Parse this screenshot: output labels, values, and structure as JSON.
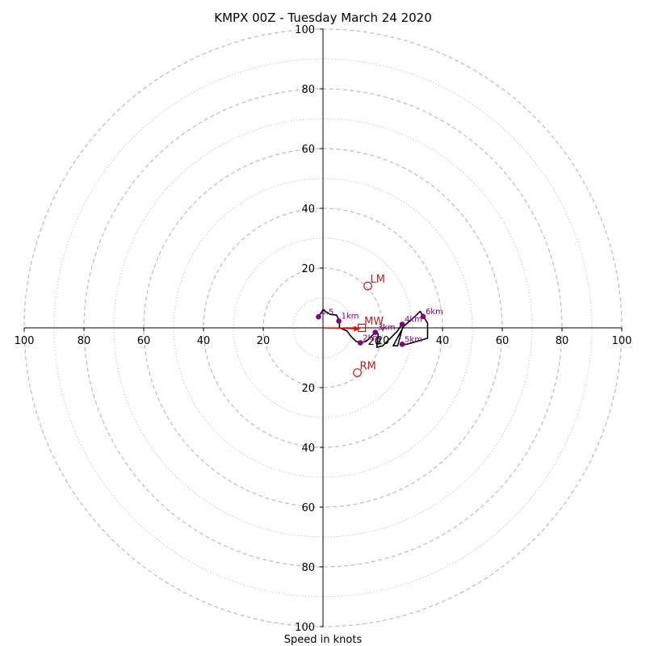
{
  "chart_data": {
    "type": "hodograph",
    "title": "KMPX 00Z - Tuesday March 24 2020",
    "xlabel": "Speed in knots",
    "range": [
      -100,
      100
    ],
    "ring_major": [
      20,
      40,
      60,
      80,
      100
    ],
    "ring_minor": [
      10,
      30,
      50,
      70,
      90
    ],
    "x_ticks": [
      {
        "value": -100,
        "label": "100"
      },
      {
        "value": -80,
        "label": "80"
      },
      {
        "value": -60,
        "label": "60"
      },
      {
        "value": -40,
        "label": "40"
      },
      {
        "value": -20,
        "label": "20"
      },
      {
        "value": 20,
        "label": "20"
      },
      {
        "value": 40,
        "label": "40"
      },
      {
        "value": 60,
        "label": "60"
      },
      {
        "value": 80,
        "label": "80"
      },
      {
        "value": 100,
        "label": "100"
      }
    ],
    "y_ticks": [
      {
        "value": 100,
        "label": "100"
      },
      {
        "value": 80,
        "label": "80"
      },
      {
        "value": 60,
        "label": "60"
      },
      {
        "value": 40,
        "label": "40"
      },
      {
        "value": 20,
        "label": "20"
      },
      {
        "value": -20,
        "label": "20"
      },
      {
        "value": -40,
        "label": "40"
      },
      {
        "value": -60,
        "label": "60"
      },
      {
        "value": -80,
        "label": "80"
      },
      {
        "value": -100,
        "label": "100"
      }
    ],
    "inner_ring_label": "20",
    "hodograph_line": [
      [
        -1.5,
        3.7
      ],
      [
        0,
        6
      ],
      [
        2.5,
        4.5
      ],
      [
        4.5,
        4.3
      ],
      [
        5.5,
        2.5
      ],
      [
        5.5,
        0
      ],
      [
        8,
        -1
      ],
      [
        9.5,
        -3
      ],
      [
        11,
        -4.5
      ],
      [
        12.5,
        -5
      ],
      [
        14.5,
        -4.5
      ],
      [
        17.5,
        -1.5
      ],
      [
        18.5,
        -2
      ],
      [
        18,
        -6.5
      ],
      [
        20,
        -6
      ],
      [
        25,
        -1
      ],
      [
        26.5,
        1.5
      ],
      [
        27,
        1.5
      ],
      [
        25,
        -6
      ],
      [
        23.5,
        -6
      ],
      [
        27,
        0.5
      ],
      [
        31,
        4
      ],
      [
        32.5,
        5.5
      ],
      [
        33.5,
        4
      ],
      [
        35,
        1.5
      ],
      [
        35,
        -3.5
      ],
      [
        28,
        -5.5
      ],
      [
        26.5,
        -5.5
      ]
    ],
    "height_markers": [
      {
        "u": -1.5,
        "v": 3.7,
        "label": "0.5"
      },
      {
        "u": 5.3,
        "v": 2.3,
        "label": "1km"
      },
      {
        "u": 12.5,
        "v": -5,
        "label": "2km"
      },
      {
        "u": 17.5,
        "v": -1.5,
        "label": "3km"
      },
      {
        "u": 26.5,
        "v": 1.2,
        "label": "4km"
      },
      {
        "u": 26.5,
        "v": -5.5,
        "label": "5km"
      },
      {
        "u": 33.5,
        "v": 3.8,
        "label": "6km"
      }
    ],
    "storm_motion": [
      {
        "u": 15,
        "v": 14,
        "label": "LM"
      },
      {
        "u": 13,
        "v": 0,
        "label": "MW"
      },
      {
        "u": 11.5,
        "v": -15,
        "label": "RM"
      }
    ],
    "shear_vector": {
      "from": [
        0,
        0
      ],
      "to": [
        12.5,
        -0.3
      ]
    },
    "colors": {
      "ring": "#bbbbbb",
      "line": "#000000",
      "marker": "#800080",
      "motion": "#b22222",
      "shear": "#ff0000"
    }
  }
}
